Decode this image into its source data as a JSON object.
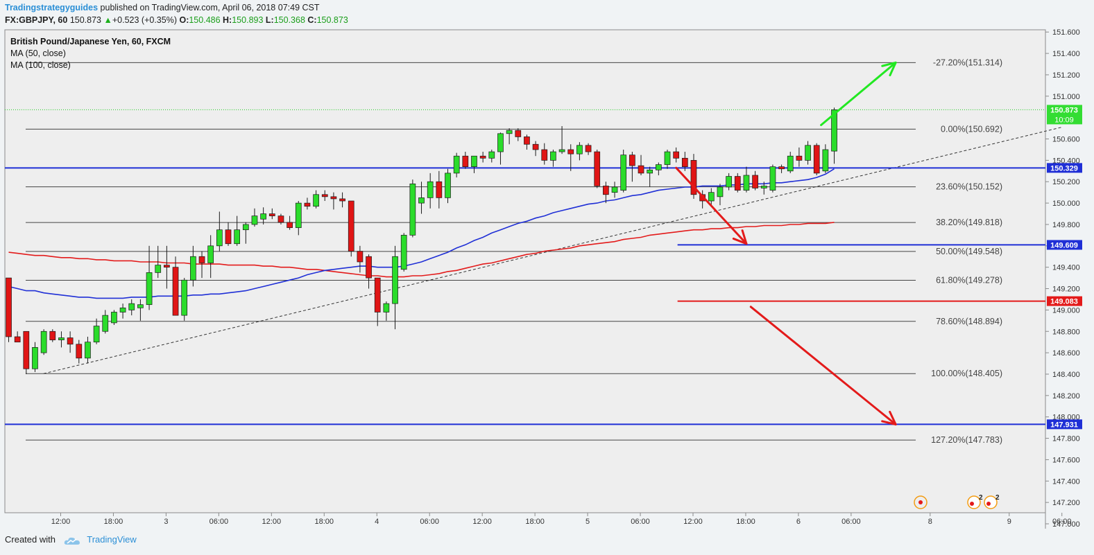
{
  "header": {
    "author": "Tradingstrategyguides",
    "published": "published on TradingView.com, April 06, 2018 07:49 CST",
    "symbol": "FX:GBPJPY, 60",
    "last": "150.873",
    "change": "+0.523 (+0.35%)",
    "open_label": "O:",
    "open": "150.486",
    "high_label": "H:",
    "high": "150.893",
    "low_label": "L:",
    "low": "150.368",
    "close_label": "C:",
    "close": "150.873"
  },
  "legend": {
    "title": "British Pound/Japanese Yen, 60, FXCM",
    "ma1": "MA (50, close)",
    "ma2": "MA (100, close)"
  },
  "footer": {
    "created_with": "Created with",
    "brand": "TradingView"
  },
  "colors": {
    "bull": "#2bdc2b",
    "bear": "#e01515",
    "ma50": "#1f2fd6",
    "ma100": "#e31a1a",
    "hline_blue": "#1f2fd6",
    "hline_red": "#e31a1a",
    "arrow_green": "#22e822",
    "arrow_red": "#e31a1a",
    "fib": "#444444",
    "background": "#f0f3f5"
  },
  "chart_data": {
    "type": "candlestick",
    "ylim": [
      146.92,
      151.5
    ],
    "y_ticks": [
      147.0,
      147.2,
      147.4,
      147.6,
      147.8,
      148.0,
      148.2,
      148.4,
      148.6,
      148.8,
      149.0,
      149.2,
      149.4,
      149.6,
      149.8,
      150.0,
      150.2,
      150.4,
      150.6,
      151.0,
      151.2,
      151.4,
      151.6
    ],
    "y_tick_labels": [
      "147.000",
      "147.200",
      "147.400",
      "147.600",
      "147.800",
      "148.000",
      "148.200",
      "148.400",
      "148.600",
      "148.800",
      "149.000",
      "149.200",
      "149.400",
      "149.600",
      "149.800",
      "150.000",
      "150.200",
      "150.400",
      "150.600",
      "151.000",
      "151.200",
      "151.400",
      "151.600"
    ],
    "x_ticks": [
      {
        "label": "12:00",
        "bar": 3
      },
      {
        "label": "18:00",
        "bar": 9
      },
      {
        "label": "3",
        "bar": 15
      },
      {
        "label": "06:00",
        "bar": 21
      },
      {
        "label": "12:00",
        "bar": 27
      },
      {
        "label": "18:00",
        "bar": 33
      },
      {
        "label": "4",
        "bar": 39
      },
      {
        "label": "06:00",
        "bar": 45
      },
      {
        "label": "12:00",
        "bar": 51
      },
      {
        "label": "18:00",
        "bar": 57
      },
      {
        "label": "5",
        "bar": 63
      },
      {
        "label": "06:00",
        "bar": 69
      },
      {
        "label": "12:00",
        "bar": 75
      },
      {
        "label": "18:00",
        "bar": 81
      },
      {
        "label": "6",
        "bar": 87
      },
      {
        "label": "06:00",
        "bar": 93
      },
      {
        "label": "8",
        "bar": 102
      },
      {
        "label": "9",
        "bar": 111
      },
      {
        "label": "06:00",
        "bar": 117
      }
    ],
    "candles": [
      [
        149.3,
        149.3,
        148.7,
        148.75
      ],
      [
        148.75,
        148.8,
        148.7,
        148.7
      ],
      [
        148.8,
        148.8,
        148.4,
        148.45
      ],
      [
        148.45,
        148.7,
        148.42,
        148.65
      ],
      [
        148.6,
        148.82,
        148.58,
        148.8
      ],
      [
        148.8,
        148.82,
        148.7,
        148.72
      ],
      [
        148.72,
        148.8,
        148.65,
        148.74
      ],
      [
        148.74,
        148.8,
        148.6,
        148.68
      ],
      [
        148.68,
        148.72,
        148.5,
        148.55
      ],
      [
        148.55,
        148.75,
        148.5,
        148.7
      ],
      [
        148.7,
        148.92,
        148.68,
        148.85
      ],
      [
        148.8,
        149.0,
        148.78,
        148.95
      ],
      [
        148.88,
        149.0,
        148.86,
        148.98
      ],
      [
        148.98,
        149.06,
        148.92,
        149.02
      ],
      [
        149.0,
        149.1,
        148.95,
        149.06
      ],
      [
        149.02,
        149.1,
        148.9,
        149.05
      ],
      [
        149.05,
        149.6,
        149.0,
        149.35
      ],
      [
        149.35,
        149.6,
        149.3,
        149.42
      ],
      [
        149.42,
        149.6,
        149.2,
        149.4
      ],
      [
        149.4,
        149.5,
        148.95,
        148.95
      ],
      [
        148.95,
        149.3,
        148.9,
        149.28
      ],
      [
        149.28,
        149.6,
        149.22,
        149.5
      ],
      [
        149.5,
        149.55,
        149.3,
        149.44
      ],
      [
        149.44,
        149.7,
        149.3,
        149.6
      ],
      [
        149.6,
        149.92,
        149.55,
        149.75
      ],
      [
        149.75,
        149.82,
        149.6,
        149.62
      ],
      [
        149.62,
        149.88,
        149.6,
        149.75
      ],
      [
        149.75,
        149.82,
        149.62,
        149.8
      ],
      [
        149.8,
        149.95,
        149.78,
        149.88
      ],
      [
        149.85,
        149.96,
        149.8,
        149.9
      ],
      [
        149.9,
        149.95,
        149.85,
        149.88
      ],
      [
        149.88,
        149.9,
        149.8,
        149.82
      ],
      [
        149.82,
        149.88,
        149.75,
        149.77
      ],
      [
        149.77,
        150.02,
        149.7,
        150.0
      ],
      [
        150.0,
        150.05,
        149.94,
        149.97
      ],
      [
        149.97,
        150.12,
        149.95,
        150.08
      ],
      [
        150.08,
        150.12,
        150.02,
        150.06
      ],
      [
        150.06,
        150.1,
        149.94,
        150.04
      ],
      [
        150.04,
        150.1,
        149.96,
        150.02
      ],
      [
        150.02,
        150.02,
        149.5,
        149.55
      ],
      [
        149.55,
        149.6,
        149.35,
        149.45
      ],
      [
        149.5,
        149.52,
        149.2,
        149.3
      ],
      [
        149.3,
        149.3,
        148.85,
        148.98
      ],
      [
        148.98,
        149.08,
        148.9,
        149.06
      ],
      [
        149.06,
        149.6,
        148.82,
        149.5
      ],
      [
        149.38,
        149.72,
        149.36,
        149.7
      ],
      [
        149.7,
        150.22,
        149.68,
        150.18
      ],
      [
        150.0,
        150.2,
        149.9,
        150.05
      ],
      [
        150.05,
        150.28,
        149.95,
        150.2
      ],
      [
        150.2,
        150.3,
        149.95,
        150.05
      ],
      [
        150.05,
        150.32,
        150.0,
        150.28
      ],
      [
        150.28,
        150.47,
        150.24,
        150.44
      ],
      [
        150.44,
        150.48,
        150.32,
        150.34
      ],
      [
        150.34,
        150.4,
        150.28,
        150.44
      ],
      [
        150.44,
        150.48,
        150.38,
        150.42
      ],
      [
        150.42,
        150.5,
        150.38,
        150.48
      ],
      [
        150.48,
        150.66,
        150.36,
        150.65
      ],
      [
        150.65,
        150.7,
        150.55,
        150.68
      ],
      [
        150.68,
        150.7,
        150.58,
        150.62
      ],
      [
        150.62,
        150.64,
        150.5,
        150.55
      ],
      [
        150.55,
        150.58,
        150.44,
        150.5
      ],
      [
        150.5,
        150.56,
        150.36,
        150.4
      ],
      [
        150.4,
        150.5,
        150.34,
        150.48
      ],
      [
        150.48,
        150.72,
        150.46,
        150.5
      ],
      [
        150.5,
        150.55,
        150.3,
        150.46
      ],
      [
        150.46,
        150.57,
        150.4,
        150.54
      ],
      [
        150.54,
        150.56,
        150.45,
        150.48
      ],
      [
        150.48,
        150.5,
        150.14,
        150.16
      ],
      [
        150.16,
        150.2,
        150.0,
        150.08
      ],
      [
        150.1,
        150.2,
        150.05,
        150.15
      ],
      [
        150.12,
        150.5,
        150.1,
        150.45
      ],
      [
        150.45,
        150.48,
        150.2,
        150.35
      ],
      [
        150.35,
        150.45,
        150.26,
        150.28
      ],
      [
        150.28,
        150.34,
        150.15,
        150.31
      ],
      [
        150.31,
        150.38,
        150.26,
        150.36
      ],
      [
        150.36,
        150.5,
        150.32,
        150.48
      ],
      [
        150.48,
        150.52,
        150.38,
        150.42
      ],
      [
        150.42,
        150.48,
        150.3,
        150.34
      ],
      [
        150.4,
        150.46,
        150.04,
        150.08
      ],
      [
        150.08,
        150.12,
        149.95,
        150.02
      ],
      [
        150.02,
        150.14,
        149.98,
        150.1
      ],
      [
        150.06,
        150.18,
        149.98,
        150.15
      ],
      [
        150.15,
        150.28,
        150.12,
        150.25
      ],
      [
        150.25,
        150.28,
        150.1,
        150.12
      ],
      [
        150.12,
        150.34,
        150.1,
        150.26
      ],
      [
        150.26,
        150.3,
        150.12,
        150.14
      ],
      [
        150.14,
        150.2,
        150.08,
        150.16
      ],
      [
        150.12,
        150.36,
        150.1,
        150.34
      ],
      [
        150.34,
        150.36,
        150.28,
        150.32
      ],
      [
        150.3,
        150.48,
        150.28,
        150.44
      ],
      [
        150.44,
        150.52,
        150.34,
        150.4
      ],
      [
        150.4,
        150.58,
        150.36,
        150.54
      ],
      [
        150.54,
        150.56,
        150.26,
        150.28
      ],
      [
        150.3,
        150.55,
        150.28,
        150.5
      ],
      [
        150.486,
        150.893,
        150.368,
        150.873
      ]
    ],
    "ma50": [
      149.22,
      149.2,
      149.18,
      149.18,
      149.16,
      149.15,
      149.14,
      149.13,
      149.12,
      149.12,
      149.11,
      149.11,
      149.11,
      149.11,
      149.12,
      149.12,
      149.12,
      149.13,
      149.13,
      149.13,
      149.13,
      149.14,
      149.14,
      149.15,
      149.15,
      149.16,
      149.17,
      149.18,
      149.2,
      149.22,
      149.24,
      149.26,
      149.28,
      149.3,
      149.33,
      149.35,
      149.37,
      149.38,
      149.39,
      149.4,
      149.41,
      149.41,
      149.4,
      149.4,
      149.4,
      149.41,
      149.43,
      149.45,
      149.48,
      149.51,
      149.54,
      149.58,
      149.61,
      149.65,
      149.68,
      149.72,
      149.75,
      149.78,
      149.81,
      149.83,
      149.86,
      149.88,
      149.91,
      149.93,
      149.95,
      149.97,
      149.99,
      150.0,
      150.02,
      150.03,
      150.05,
      150.07,
      150.08,
      150.1,
      150.12,
      150.13,
      150.14,
      150.15,
      150.15,
      150.16,
      150.16,
      150.16,
      150.17,
      150.17,
      150.18,
      150.18,
      150.18,
      150.19,
      150.19,
      150.2,
      150.21,
      150.22,
      150.24,
      150.27,
      150.32
    ],
    "ma100": [
      149.54,
      149.53,
      149.52,
      149.51,
      149.51,
      149.5,
      149.49,
      149.49,
      149.48,
      149.48,
      149.47,
      149.47,
      149.46,
      149.46,
      149.46,
      149.45,
      149.45,
      149.45,
      149.44,
      149.44,
      149.44,
      149.43,
      149.43,
      149.43,
      149.43,
      149.42,
      149.42,
      149.42,
      149.42,
      149.41,
      149.41,
      149.4,
      149.4,
      149.39,
      149.38,
      149.38,
      149.37,
      149.36,
      149.35,
      149.34,
      149.33,
      149.32,
      149.32,
      149.31,
      149.31,
      149.31,
      149.32,
      149.32,
      149.33,
      149.34,
      149.36,
      149.37,
      149.39,
      149.41,
      149.43,
      149.44,
      149.46,
      149.48,
      149.5,
      149.52,
      149.53,
      149.55,
      149.56,
      149.57,
      149.58,
      149.6,
      149.61,
      149.62,
      149.63,
      149.64,
      149.66,
      149.67,
      149.68,
      149.7,
      149.71,
      149.72,
      149.73,
      149.74,
      149.75,
      149.75,
      149.76,
      149.76,
      149.77,
      149.77,
      149.78,
      149.78,
      149.79,
      149.79,
      149.79,
      149.8,
      149.8,
      149.81,
      149.81,
      149.81,
      149.82
    ],
    "fib_levels": [
      {
        "label": "-27.20%(151.314)",
        "price": 151.314
      },
      {
        "label": "0.00%(150.692)",
        "price": 150.692
      },
      {
        "label": "23.60%(150.152)",
        "price": 150.152
      },
      {
        "label": "38.20%(149.818)",
        "price": 149.818
      },
      {
        "label": "50.00%(149.548)",
        "price": 149.548
      },
      {
        "label": "61.80%(149.278)",
        "price": 149.278
      },
      {
        "label": "78.60%(148.894)",
        "price": 148.894
      },
      {
        "label": "100.00%(148.405)",
        "price": 148.405
      },
      {
        "label": "127.20%(147.783)",
        "price": 147.783
      }
    ],
    "trendline": {
      "from": [
        2,
        148.405
      ],
      "to": [
        117,
        150.71
      ]
    },
    "hlines": [
      {
        "label": "150.329",
        "price": 150.329,
        "color": "blue",
        "from_bar": 0
      },
      {
        "label": "149.609",
        "price": 149.609,
        "color": "blue",
        "from_bar": 76
      },
      {
        "label": "149.083",
        "price": 149.083,
        "color": "red",
        "from_bar": 76
      },
      {
        "label": "147.931",
        "price": 147.931,
        "color": "blue",
        "from_bar": 0
      }
    ],
    "last_price": {
      "label": "150.873",
      "price": 150.873,
      "countdown": "10:09"
    },
    "arrows": [
      {
        "color": "green",
        "from": [
          92.5,
          150.73
        ],
        "to": [
          101,
          151.314
        ]
      },
      {
        "color": "red",
        "from": [
          76,
          150.33
        ],
        "to": [
          84,
          149.62
        ]
      },
      {
        "color": "red",
        "from": [
          84.5,
          149.03
        ],
        "to": [
          101,
          147.93
        ]
      }
    ],
    "badges": [
      "2",
      "2"
    ]
  }
}
